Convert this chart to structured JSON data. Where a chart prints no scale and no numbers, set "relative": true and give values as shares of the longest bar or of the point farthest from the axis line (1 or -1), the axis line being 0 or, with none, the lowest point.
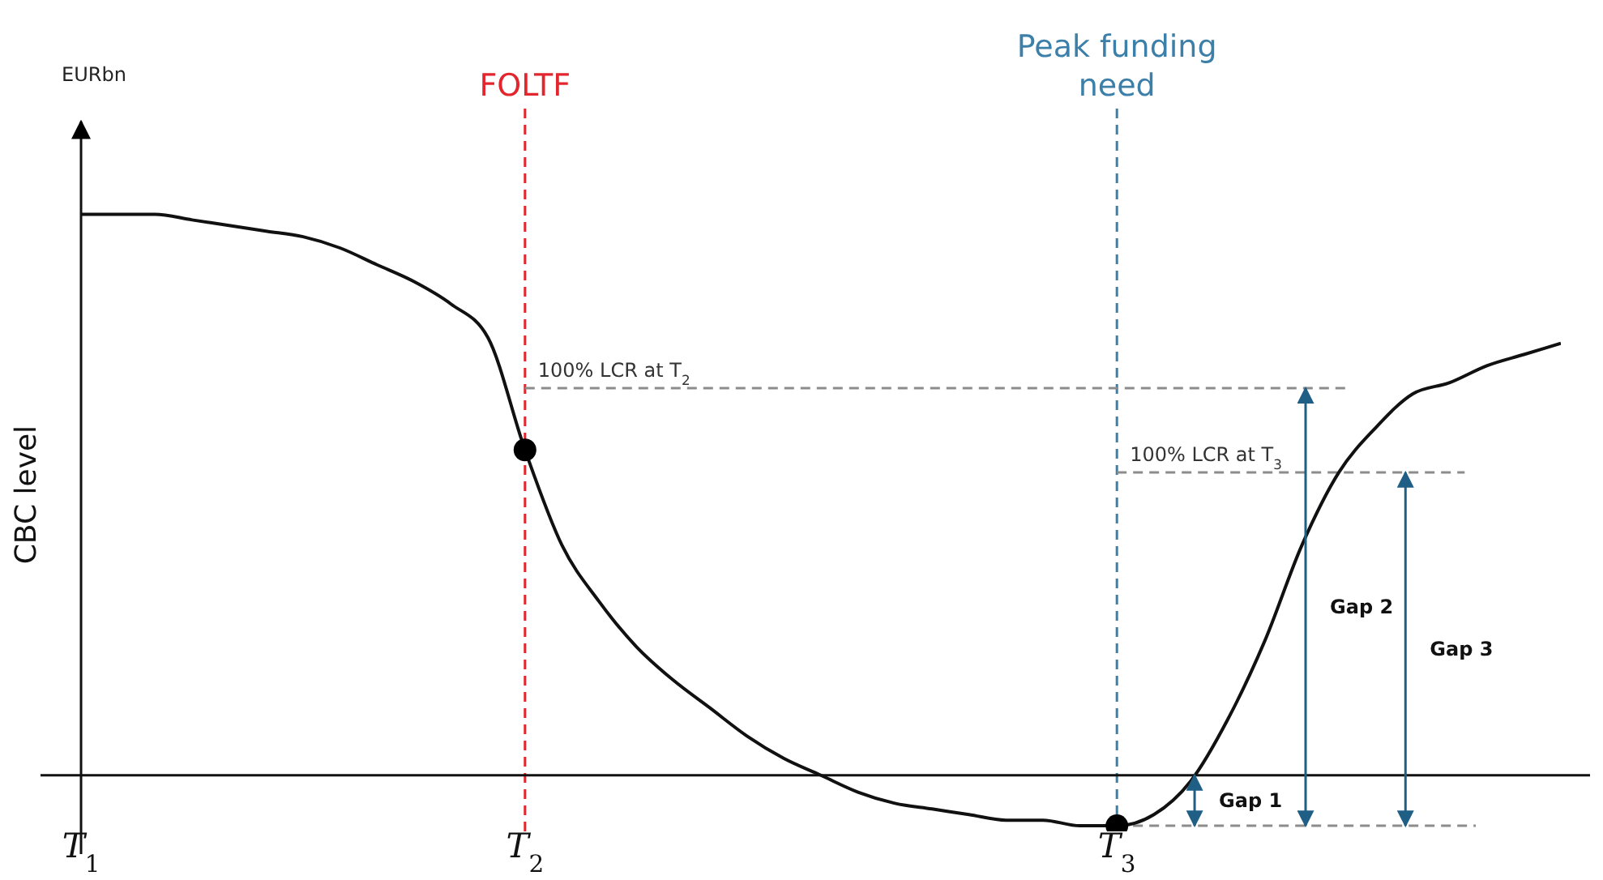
{
  "chart_data": {
    "type": "line",
    "relative": true,
    "ylabel": "CBC level",
    "marker": "none",
    "categories": [
      "T$_{1}$",
      null,
      null,
      null,
      null,
      null,
      null,
      null,
      null,
      null,
      null,
      null,
      "T$_{2}$",
      null,
      null,
      null,
      null,
      null,
      null,
      null,
      null,
      null,
      null,
      null,
      null,
      null,
      null,
      null,
      "T$_{3}$",
      null,
      null,
      null,
      null,
      null,
      null,
      null,
      null,
      null,
      null,
      null,
      null
    ],
    "series": [
      {
        "color": "#111111",
        "values": [
          1.0,
          1.0,
          1.0,
          0.99,
          0.98,
          0.97,
          0.96,
          0.94,
          0.91,
          0.88,
          0.84,
          0.78,
          0.58,
          0.41,
          0.31,
          0.23,
          0.17,
          0.12,
          0.07,
          0.03,
          0.0,
          -0.03,
          -0.05,
          -0.06,
          -0.07,
          -0.08,
          -0.08,
          -0.09,
          -0.09,
          -0.07,
          -0.01,
          0.1,
          0.24,
          0.41,
          0.54,
          0.62,
          0.68,
          0.7,
          0.73,
          0.75,
          0.77
        ]
      },
      {
        "type": "scatter",
        "marker": "circle",
        "color": "#000000",
        "x": [
          "T$_{2}$",
          "T$_{3}$"
        ],
        "values": [
          0.58,
          -0.09
        ]
      }
    ],
    "ref_lines": [
      {
        "axis": "x",
        "value": "T$_{2}$",
        "label": "FOLTF",
        "color": "#e3262d",
        "line_style": "dashed"
      },
      {
        "axis": "x",
        "value": "T$_{3}$",
        "label": "Peak funding need",
        "color": "#3c7fa8",
        "line_style": "dashed"
      },
      {
        "axis": "y",
        "value": 0.69,
        "label": "100% LCR at T$_{2}$",
        "color": "#8c8c8c",
        "line_style": "dashed"
      },
      {
        "axis": "y",
        "value": 0.54,
        "label": "100% LCR at T$_{3}$",
        "color": "#8c8c8c",
        "line_style": "dashed"
      },
      {
        "axis": "y",
        "value": -0.09,
        "label": null,
        "color": "#8c8c8c",
        "line_style": "dashed"
      }
    ],
    "annotations": [
      "EURbn",
      "Gap 1",
      "Gap 2",
      "Gap 3"
    ]
  }
}
